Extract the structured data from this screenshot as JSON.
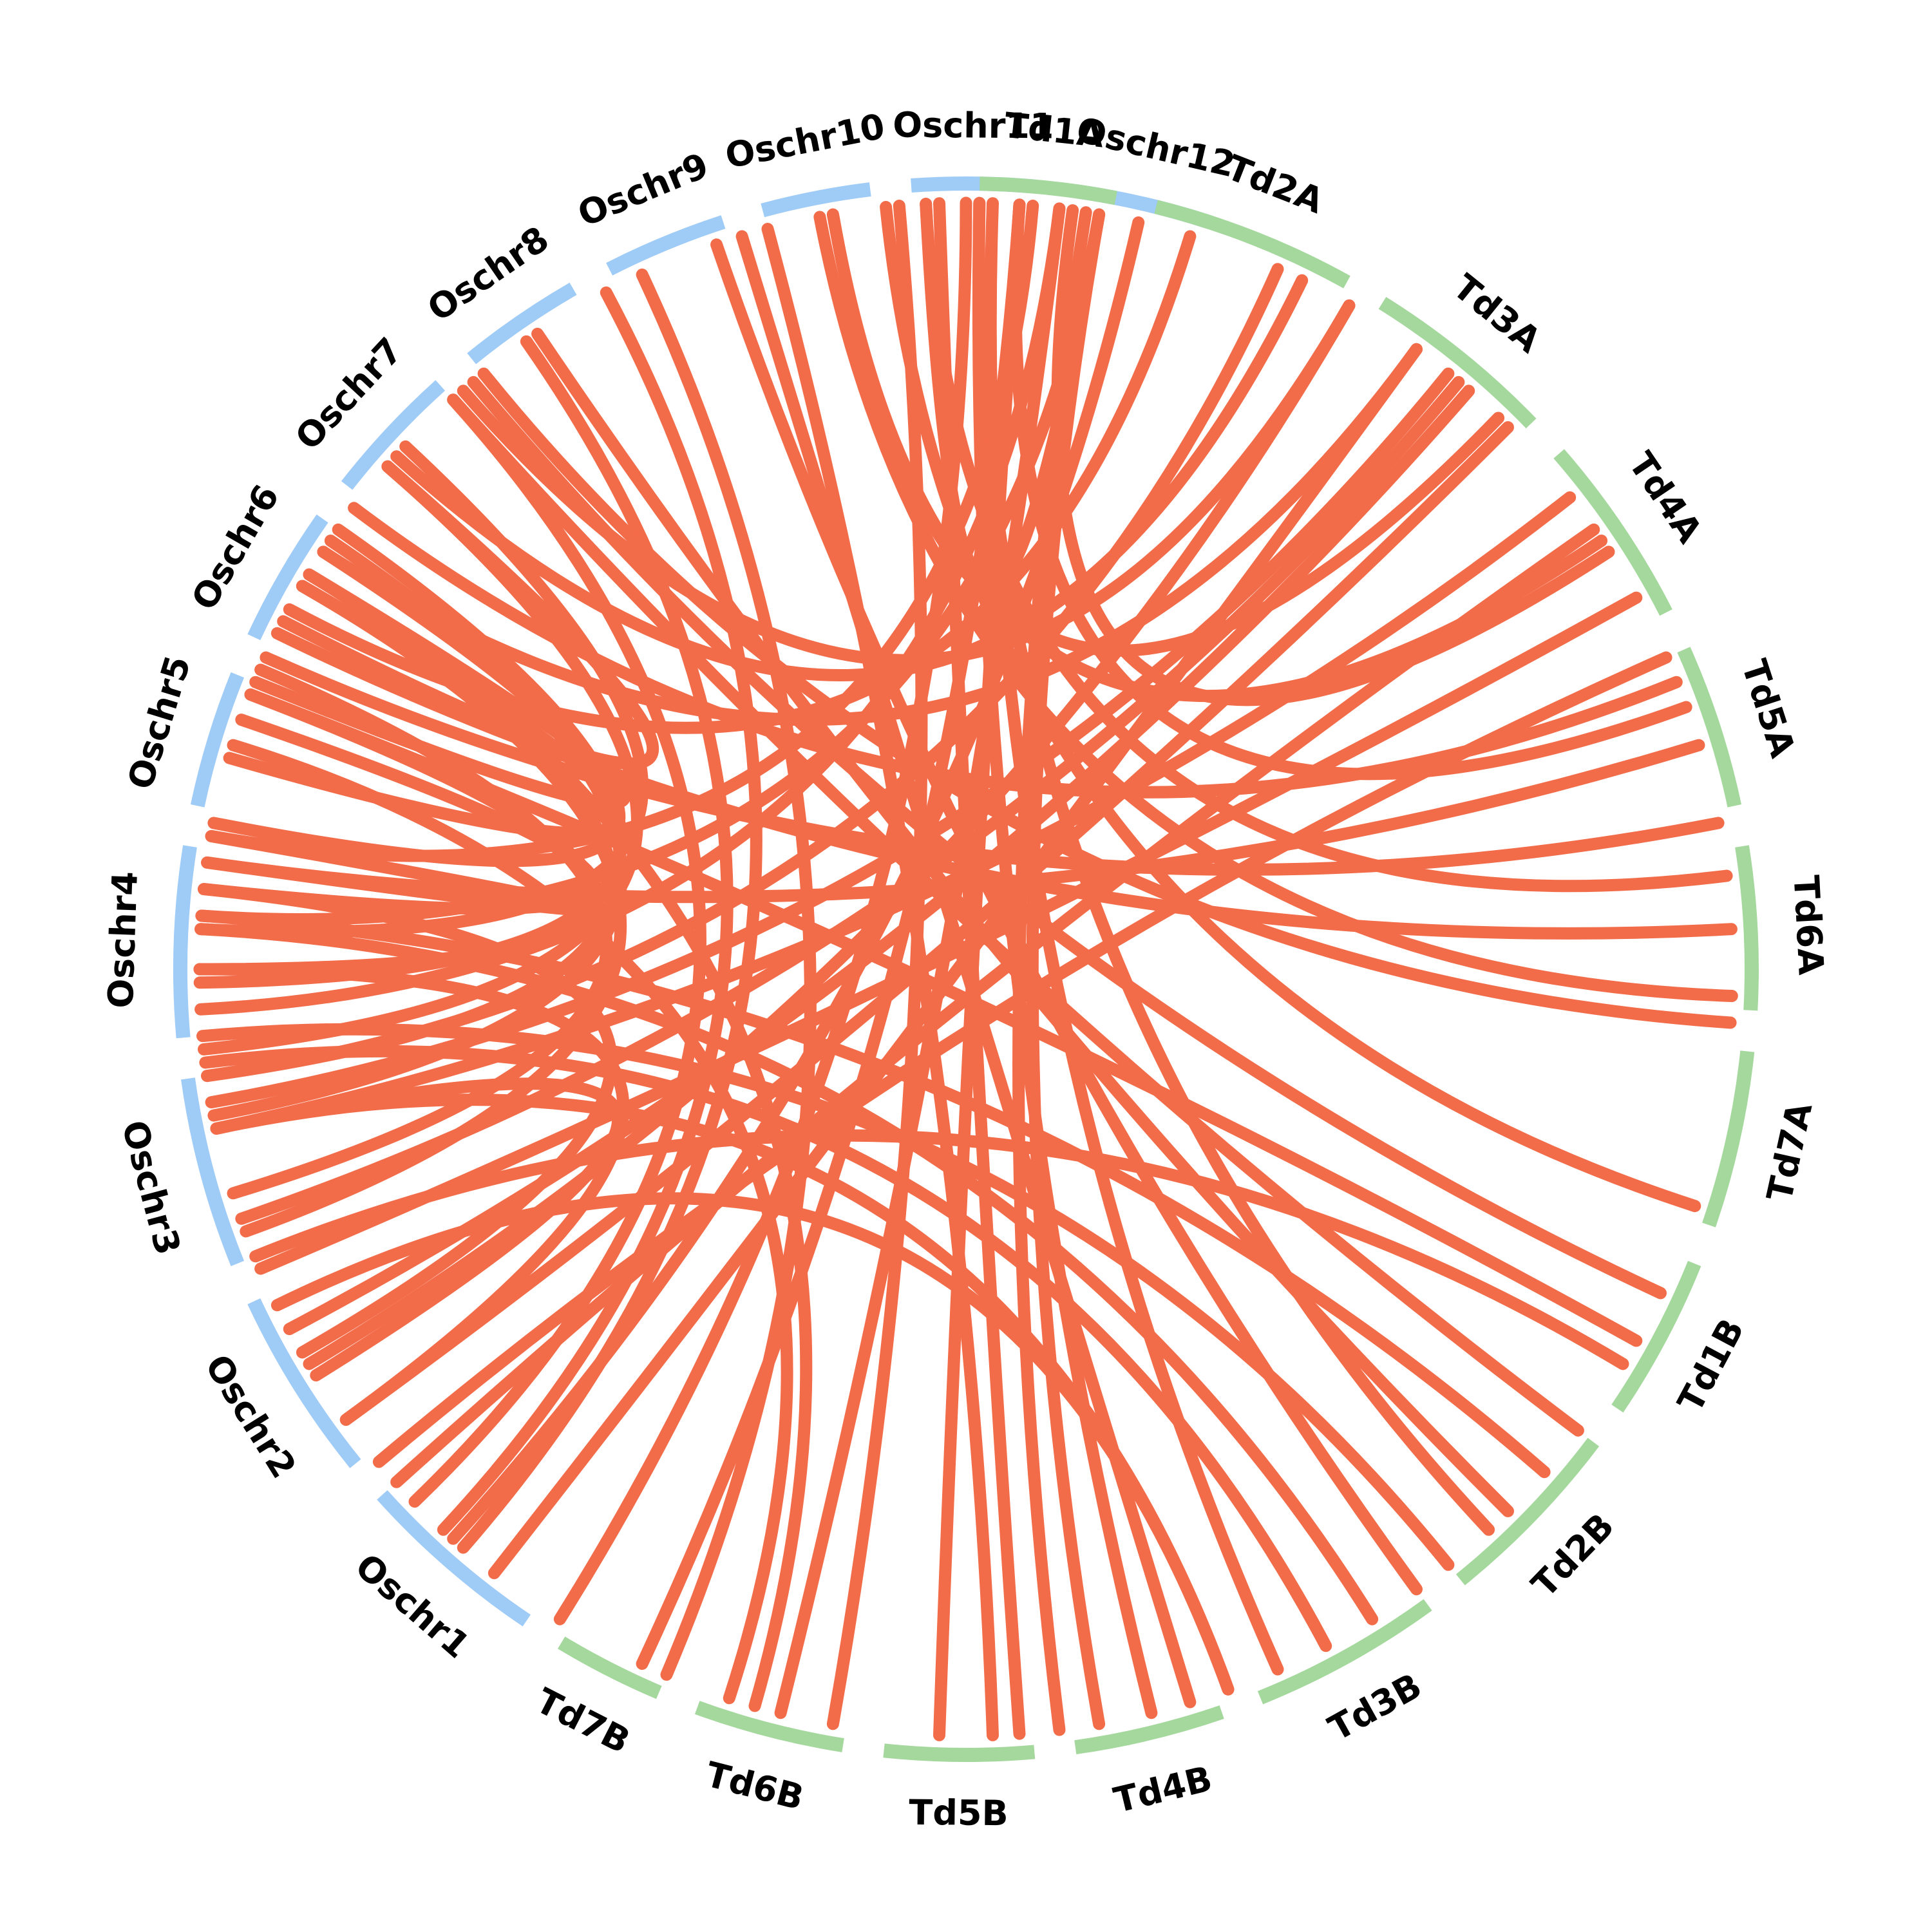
{
  "colors": {
    "rice": "#9fcbf7",
    "wheat": "#a4d89c",
    "link": "#f36c4a",
    "background": "#ffffff",
    "label": "#000000"
  },
  "chromosomes": [
    {
      "name": "Oschr1",
      "group": "rice",
      "start": 214,
      "end": 228
    },
    {
      "name": "Oschr2",
      "group": "rice",
      "start": 231,
      "end": 245
    },
    {
      "name": "Oschr3",
      "group": "rice",
      "start": 248,
      "end": 262
    },
    {
      "name": "Oschr4",
      "group": "rice",
      "start": 265,
      "end": 279
    },
    {
      "name": "Oschr5",
      "group": "rice",
      "start": 282,
      "end": 292
    },
    {
      "name": "Oschr6",
      "group": "rice",
      "start": 295,
      "end": 305
    },
    {
      "name": "Oschr7",
      "group": "rice",
      "start": 308,
      "end": 318
    },
    {
      "name": "Oschr8",
      "group": "rice",
      "start": 321,
      "end": 330
    },
    {
      "name": "Oschr9",
      "group": "rice",
      "start": 333,
      "end": 342
    },
    {
      "name": "Oschr10",
      "group": "rice",
      "start": 345,
      "end": 353
    },
    {
      "name": "Oschr11",
      "group": "rice",
      "start": 356,
      "end": 365
    },
    {
      "name": "Oschr12",
      "group": "rice",
      "start": 368,
      "end": 378
    },
    {
      "name": "Td1A",
      "group": "wheat",
      "start": 1,
      "end": 11
    },
    {
      "name": "Td2A",
      "group": "wheat",
      "start": 14,
      "end": 29
    },
    {
      "name": "Td3A",
      "group": "wheat",
      "start": 32,
      "end": 46
    },
    {
      "name": "Td4A",
      "group": "wheat",
      "start": 49,
      "end": 63
    },
    {
      "name": "Td5A",
      "group": "wheat",
      "start": 66,
      "end": 78
    },
    {
      "name": "Td6A",
      "group": "wheat",
      "start": 81,
      "end": 93
    },
    {
      "name": "Td7A",
      "group": "wheat",
      "start": 96,
      "end": 109
    },
    {
      "name": "Td1B",
      "group": "wheat",
      "start": 112,
      "end": 124
    },
    {
      "name": "Td2B",
      "group": "wheat",
      "start": 127,
      "end": 141
    },
    {
      "name": "Td3B",
      "group": "wheat",
      "start": 144,
      "end": 158
    },
    {
      "name": "Td4B",
      "group": "wheat",
      "start": 161,
      "end": 172
    },
    {
      "name": "Td5B",
      "group": "wheat",
      "start": 175,
      "end": 186
    },
    {
      "name": "Td6B",
      "group": "wheat",
      "start": 189,
      "end": 200
    },
    {
      "name": "Td7B",
      "group": "wheat",
      "start": 203,
      "end": 211
    }
  ],
  "links": [
    [
      222,
      373
    ],
    [
      212,
      360
    ],
    [
      221,
      332
    ],
    [
      223,
      325
    ],
    [
      226,
      318
    ],
    [
      234,
      270
    ],
    [
      238,
      258
    ],
    [
      240,
      276
    ],
    [
      250,
      300
    ],
    [
      253,
      293
    ],
    [
      259,
      304
    ],
    [
      262,
      300
    ],
    [
      264,
      311
    ],
    [
      269,
      305
    ],
    [
      270,
      291
    ],
    [
      273,
      313
    ],
    [
      276,
      289
    ],
    [
      278,
      280
    ],
    [
      281,
      303
    ],
    [
      286,
      300
    ],
    [
      292,
      301
    ],
    [
      297,
      311
    ],
    [
      5,
      280
    ],
    [
      7,
      267
    ],
    [
      10,
      357
    ],
    [
      10,
      274
    ],
    [
      17,
      298
    ],
    [
      24,
      262
    ],
    [
      26,
      312
    ],
    [
      30,
      239
    ],
    [
      30,
      319
    ],
    [
      36,
      218
    ],
    [
      36,
      303
    ],
    [
      39,
      260
    ],
    [
      40,
      251
    ],
    [
      41,
      242
    ],
    [
      44,
      350
    ],
    [
      45,
      234
    ],
    [
      52,
      258
    ],
    [
      55,
      228
    ],
    [
      56,
      350
    ],
    [
      57,
      368
    ],
    [
      61,
      247
    ],
    [
      66,
      230
    ],
    [
      68,
      307
    ],
    [
      70,
      364
    ],
    [
      73,
      278
    ],
    [
      79,
      294
    ],
    [
      83,
      357
    ],
    [
      87,
      296
    ],
    [
      92,
      349
    ],
    [
      94,
      321
    ],
    [
      108,
      354
    ],
    [
      115,
      320
    ],
    [
      119,
      291
    ],
    [
      121,
      248
    ],
    [
      127,
      318
    ],
    [
      131,
      274
    ],
    [
      135,
      326
    ],
    [
      137,
      361
    ],
    [
      141,
      265
    ],
    [
      144,
      341
    ],
    [
      148,
      273
    ],
    [
      152,
      263
    ],
    [
      156,
      362
    ],
    [
      160,
      258
    ],
    [
      160,
      244
    ],
    [
      163,
      343
    ],
    [
      166,
      361
    ],
    [
      170,
      370
    ],
    [
      173,
      369
    ],
    [
      176,
      358
    ],
    [
      178,
      345
    ],
    [
      182,
      364
    ],
    [
      190,
      355
    ],
    [
      194,
      367
    ],
    [
      196,
      301
    ],
    [
      198,
      287
    ],
    [
      203,
      335
    ],
    [
      205,
      364
    ]
  ]
}
